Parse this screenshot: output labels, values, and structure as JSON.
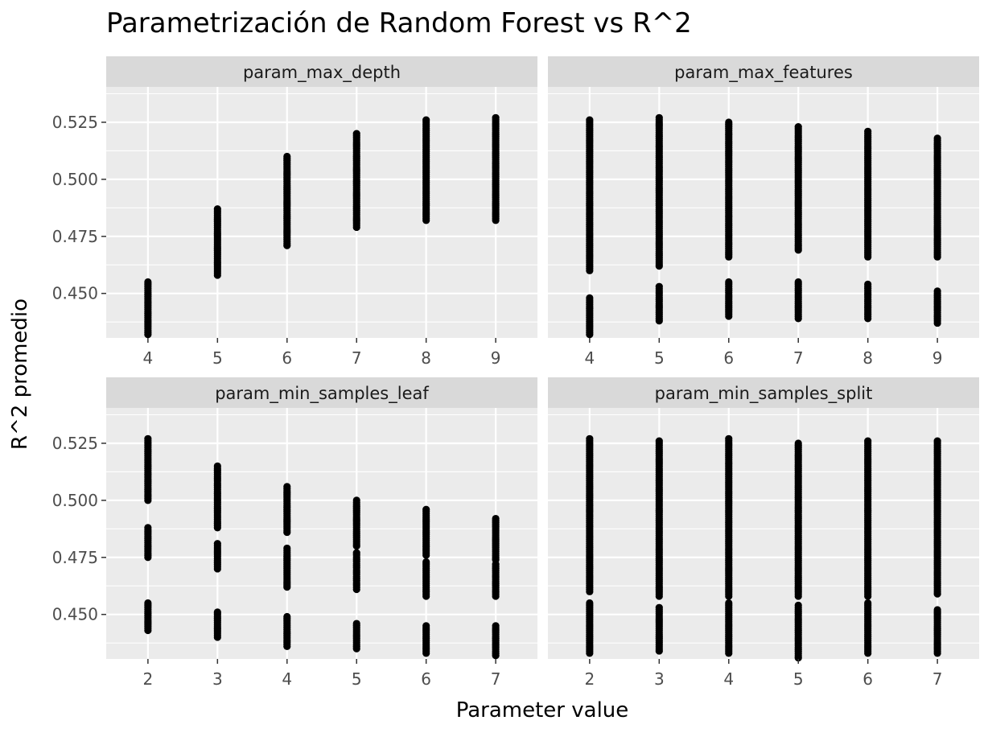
{
  "chart_data": {
    "type": "scatter",
    "title": "Parametrización de Random Forest vs R^2",
    "xlabel": "Parameter value",
    "ylabel": "R^2 promedio",
    "ylim": [
      0.4305,
      0.5405
    ],
    "y_ticks": [
      0.45,
      0.475,
      0.5,
      0.525
    ],
    "y_tick_labels": [
      "0.450",
      "0.475",
      "0.500",
      "0.525"
    ],
    "grid": true,
    "facets": [
      {
        "name": "param_max_depth",
        "x_ticks": [
          4,
          5,
          6,
          7,
          8,
          9
        ],
        "xlim": [
          3.4,
          9.6
        ],
        "points": [
          {
            "x": 4,
            "y_ranges": [
              [
                0.432,
                0.455
              ]
            ]
          },
          {
            "x": 5,
            "y_ranges": [
              [
                0.458,
                0.487
              ]
            ]
          },
          {
            "x": 6,
            "y_ranges": [
              [
                0.471,
                0.51
              ]
            ]
          },
          {
            "x": 7,
            "y_ranges": [
              [
                0.479,
                0.52
              ]
            ]
          },
          {
            "x": 8,
            "y_ranges": [
              [
                0.482,
                0.526
              ]
            ]
          },
          {
            "x": 9,
            "y_ranges": [
              [
                0.482,
                0.527
              ]
            ]
          }
        ]
      },
      {
        "name": "param_max_features",
        "x_ticks": [
          4,
          5,
          6,
          7,
          8,
          9
        ],
        "xlim": [
          3.4,
          9.6
        ],
        "points": [
          {
            "x": 4,
            "y_ranges": [
              [
                0.432,
                0.448
              ],
              [
                0.46,
                0.526
              ]
            ]
          },
          {
            "x": 5,
            "y_ranges": [
              [
                0.438,
                0.453
              ],
              [
                0.462,
                0.527
              ]
            ]
          },
          {
            "x": 6,
            "y_ranges": [
              [
                0.44,
                0.455
              ],
              [
                0.466,
                0.525
              ]
            ]
          },
          {
            "x": 7,
            "y_ranges": [
              [
                0.439,
                0.455
              ],
              [
                0.469,
                0.523
              ]
            ]
          },
          {
            "x": 8,
            "y_ranges": [
              [
                0.439,
                0.454
              ],
              [
                0.466,
                0.521
              ]
            ]
          },
          {
            "x": 9,
            "y_ranges": [
              [
                0.437,
                0.451
              ],
              [
                0.466,
                0.518
              ]
            ]
          }
        ]
      },
      {
        "name": "param_min_samples_leaf",
        "x_ticks": [
          2,
          3,
          4,
          5,
          6,
          7
        ],
        "xlim": [
          1.4,
          7.6
        ],
        "points": [
          {
            "x": 2,
            "y_ranges": [
              [
                0.443,
                0.455
              ],
              [
                0.475,
                0.488
              ],
              [
                0.5,
                0.527
              ]
            ]
          },
          {
            "x": 3,
            "y_ranges": [
              [
                0.44,
                0.451
              ],
              [
                0.47,
                0.481
              ],
              [
                0.488,
                0.515
              ]
            ]
          },
          {
            "x": 4,
            "y_ranges": [
              [
                0.436,
                0.449
              ],
              [
                0.462,
                0.479
              ],
              [
                0.486,
                0.506
              ]
            ]
          },
          {
            "x": 5,
            "y_ranges": [
              [
                0.435,
                0.446
              ],
              [
                0.461,
                0.477
              ],
              [
                0.48,
                0.5
              ]
            ]
          },
          {
            "x": 6,
            "y_ranges": [
              [
                0.433,
                0.445
              ],
              [
                0.458,
                0.473
              ],
              [
                0.476,
                0.496
              ]
            ]
          },
          {
            "x": 7,
            "y_ranges": [
              [
                0.432,
                0.445
              ],
              [
                0.458,
                0.472
              ],
              [
                0.474,
                0.492
              ]
            ]
          }
        ]
      },
      {
        "name": "param_min_samples_split",
        "x_ticks": [
          2,
          3,
          4,
          5,
          6,
          7
        ],
        "xlim": [
          1.4,
          7.6
        ],
        "points": [
          {
            "x": 2,
            "y_ranges": [
              [
                0.433,
                0.455
              ],
              [
                0.46,
                0.527
              ]
            ]
          },
          {
            "x": 3,
            "y_ranges": [
              [
                0.434,
                0.453
              ],
              [
                0.458,
                0.526
              ]
            ]
          },
          {
            "x": 4,
            "y_ranges": [
              [
                0.433,
                0.455
              ],
              [
                0.458,
                0.527
              ]
            ]
          },
          {
            "x": 5,
            "y_ranges": [
              [
                0.431,
                0.454
              ],
              [
                0.458,
                0.525
              ]
            ]
          },
          {
            "x": 6,
            "y_ranges": [
              [
                0.433,
                0.455
              ],
              [
                0.458,
                0.526
              ]
            ]
          },
          {
            "x": 7,
            "y_ranges": [
              [
                0.433,
                0.452
              ],
              [
                0.459,
                0.526
              ]
            ]
          }
        ]
      }
    ]
  }
}
